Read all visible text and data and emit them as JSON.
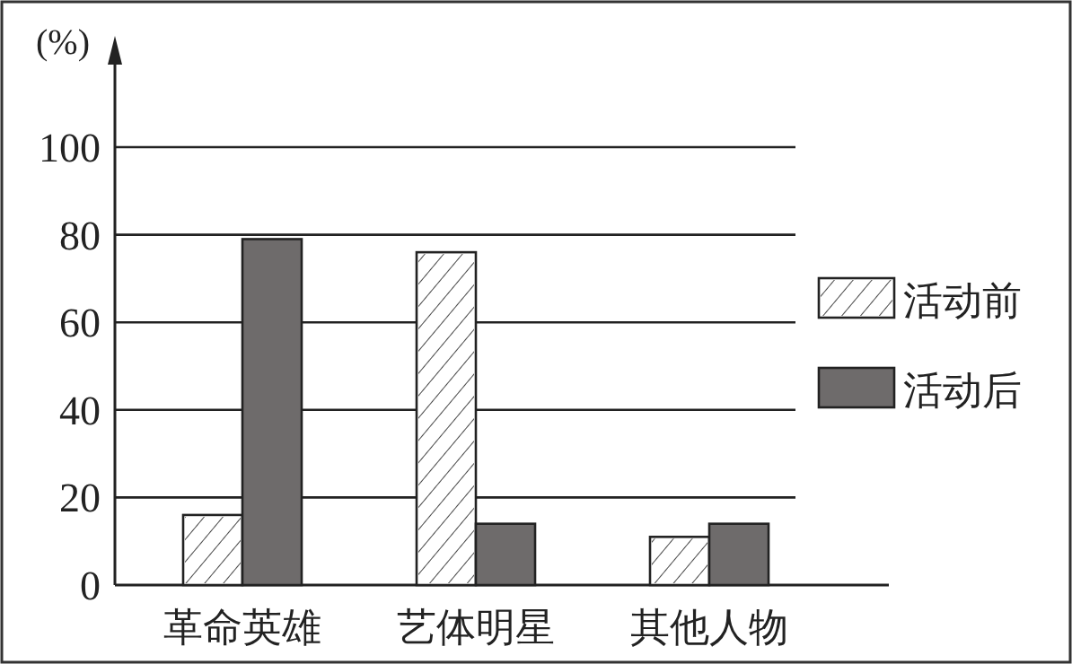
{
  "chart_data": {
    "type": "bar",
    "ylabel": "(%)",
    "categories": [
      "革命英雄",
      "艺体明星",
      "其他人物"
    ],
    "series": [
      {
        "name": "活动前",
        "color": "#ffffff",
        "values": [
          16,
          76,
          11
        ]
      },
      {
        "name": "活动后",
        "color": "#6e6b6b",
        "values": [
          79,
          14,
          14
        ]
      }
    ],
    "ylim": [
      0,
      100
    ],
    "yticks": [
      0,
      20,
      40,
      60,
      80,
      100
    ],
    "grid": "y",
    "legend": "right"
  }
}
